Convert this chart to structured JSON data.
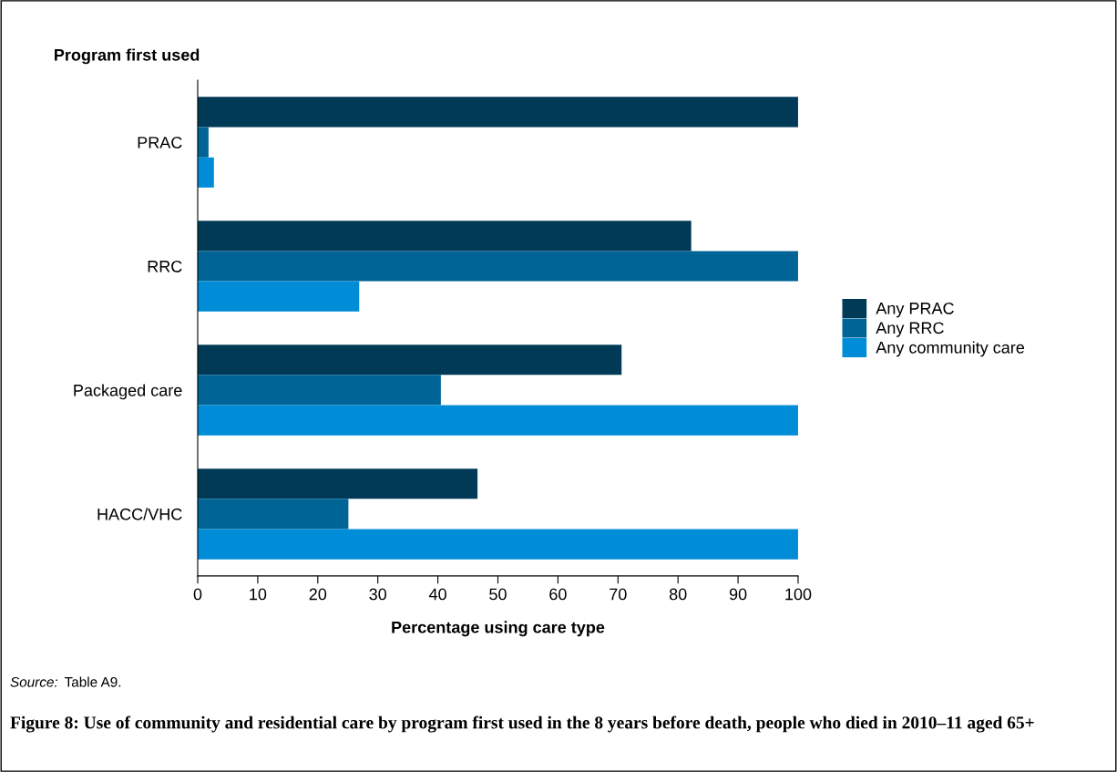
{
  "chart_data": {
    "type": "bar",
    "orientation": "horizontal",
    "title": "Figure 8: Use of community and residential care by program first used in the 8 years before death, people who died in 2010–11 aged 65+",
    "xlabel": "Percentage using care type",
    "ylabel": "Program first used",
    "categories": [
      "PRAC",
      "RRC",
      "Packaged care",
      "HACC/VHC"
    ],
    "series": [
      {
        "name": "Any PRAC",
        "color": "#003a57",
        "values": [
          100,
          82.2,
          70.6,
          46.6
        ]
      },
      {
        "name": "Any RRC",
        "color": "#006496",
        "values": [
          1.8,
          100,
          40.5,
          25.1
        ]
      },
      {
        "name": "Any community care",
        "color": "#008cd7",
        "values": [
          2.7,
          26.9,
          100,
          100
        ]
      }
    ],
    "xlim": [
      0,
      100
    ],
    "xticks": [
      0,
      10,
      20,
      30,
      40,
      50,
      60,
      70,
      80,
      90,
      100
    ],
    "grid": false,
    "legend": "right",
    "annotations": [
      "Source: Table A9."
    ]
  }
}
